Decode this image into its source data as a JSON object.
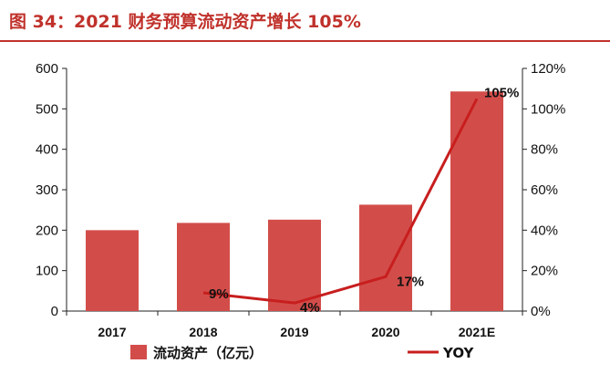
{
  "title": "图 34：2021 财务预算流动资产增长 105%",
  "colors": {
    "bar": "#d24d4a",
    "line": "#c81e1e",
    "title": "#c0312b"
  },
  "chart_data": {
    "type": "bar",
    "title": "图 34：2021 财务预算流动资产增长 105%",
    "categories": [
      "2017",
      "2018",
      "2019",
      "2020",
      "2021E"
    ],
    "series": [
      {
        "name": "流动资产（亿元）",
        "type": "bar",
        "axis": "left",
        "values": [
          200,
          218,
          226,
          263,
          543
        ]
      },
      {
        "name": "YOY",
        "type": "line",
        "axis": "right",
        "values": [
          null,
          9,
          4,
          17,
          105
        ],
        "labels": [
          "",
          "9%",
          "4%",
          "17%",
          "105%"
        ]
      }
    ],
    "y_left": {
      "range": [
        0,
        600
      ],
      "ticks": [
        "0",
        "100",
        "200",
        "300",
        "400",
        "500",
        "600"
      ]
    },
    "y_right": {
      "range": [
        0,
        120
      ],
      "ticks": [
        "0%",
        "20%",
        "40%",
        "60%",
        "80%",
        "100%",
        "120%"
      ]
    },
    "grid": false,
    "legend": {
      "position": "bottom",
      "entries": [
        "流动资产（亿元）",
        "YOY"
      ]
    }
  }
}
